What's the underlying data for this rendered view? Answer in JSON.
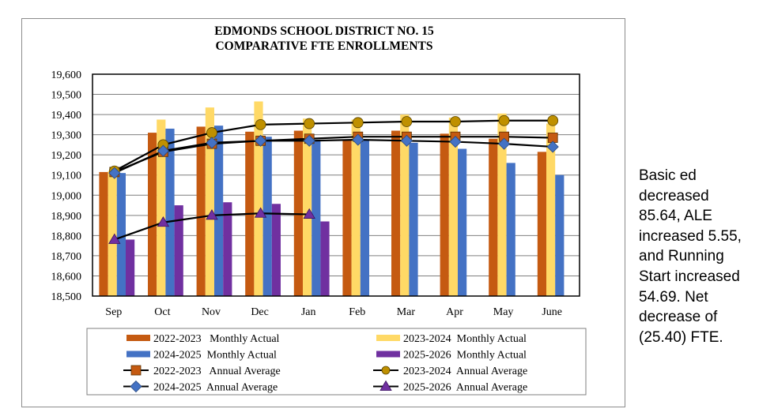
{
  "chart_data": {
    "type": "bar",
    "title": "EDMONDS SCHOOL DISTRICT NO. 15",
    "subtitle": "COMPARATIVE FTE ENROLLMENTS",
    "xlabel": "",
    "ylabel": "",
    "ylim": [
      18500,
      19600
    ],
    "ytick_step": 100,
    "yticks": [
      "18,500",
      "18,600",
      "18,700",
      "18,800",
      "18,900",
      "19,000",
      "19,100",
      "19,200",
      "19,300",
      "19,400",
      "19,500",
      "19,600"
    ],
    "grid": true,
    "legend_position": "bottom",
    "categories": [
      "Sep",
      "Oct",
      "Nov",
      "Dec",
      "Jan",
      "Feb",
      "Mar",
      "Apr",
      "May",
      "June"
    ],
    "bar_series": [
      {
        "name": "2022-2023  Monthly Actual",
        "color": "#C55A11",
        "values": [
          19115,
          19310,
          19340,
          19315,
          19320,
          19275,
          19320,
          19305,
          19280,
          19215
        ]
      },
      {
        "name": "2023-2024  Monthly Actual",
        "color": "#FFD966",
        "values": [
          19120,
          19375,
          19435,
          19465,
          19380,
          19375,
          19400,
          19385,
          19405,
          19355
        ]
      },
      {
        "name": "2024-2025  Monthly Actual",
        "color": "#4472C4",
        "values": [
          19110,
          19330,
          19345,
          19290,
          19270,
          19275,
          19260,
          19230,
          19160,
          19100
        ]
      },
      {
        "name": "2025-2026  Monthly Actual",
        "color": "#7030A0",
        "values": [
          18780,
          18950,
          18965,
          18957,
          18870,
          null,
          null,
          null,
          null,
          null
        ]
      }
    ],
    "line_series": [
      {
        "name": "2022-2023  Annual Average",
        "marker": "square",
        "color": "#C55A11",
        "values": [
          19115,
          19215,
          19255,
          19270,
          19280,
          19290,
          19290,
          19290,
          19290,
          19285
        ]
      },
      {
        "name": "2023-2024  Annual Average",
        "marker": "circle",
        "color": "#BF9000",
        "values": [
          19120,
          19250,
          19310,
          19350,
          19355,
          19360,
          19365,
          19365,
          19370,
          19370
        ]
      },
      {
        "name": "2024-2025  Annual Average",
        "marker": "diamond",
        "color": "#4472C4",
        "values": [
          19110,
          19220,
          19260,
          19270,
          19270,
          19275,
          19270,
          19265,
          19255,
          19240
        ]
      },
      {
        "name": "2025-2026  Annual Average",
        "marker": "triangle",
        "color": "#7030A0",
        "values": [
          18780,
          18865,
          18900,
          18910,
          18905,
          null,
          null,
          null,
          null,
          null
        ]
      }
    ],
    "legend_entries": [
      {
        "label": "2022-2023   Monthly Actual",
        "kind": "bar",
        "color": "#C55A11"
      },
      {
        "label": "2023-2024  Monthly Actual",
        "kind": "bar",
        "color": "#FFD966"
      },
      {
        "label": "2024-2025  Monthly Actual",
        "kind": "bar",
        "color": "#4472C4"
      },
      {
        "label": "2025-2026  Monthly Actual",
        "kind": "bar",
        "color": "#7030A0"
      },
      {
        "label": "2022-2023   Annual Average",
        "kind": "square",
        "color": "#C55A11"
      },
      {
        "label": "2023-2024  Annual Average",
        "kind": "circle",
        "color": "#BF9000"
      },
      {
        "label": "2024-2025  Annual Average",
        "kind": "diamond",
        "color": "#4472C4"
      },
      {
        "label": "2025-2026  Annual Average",
        "kind": "triangle",
        "color": "#7030A0"
      }
    ]
  },
  "side_note": "Basic ed\ndecreased\n85.64, ALE\nincreased 5.55,\nand Running\nStart increased\n54.69.  Net\ndecrease of\n(25.40) FTE."
}
